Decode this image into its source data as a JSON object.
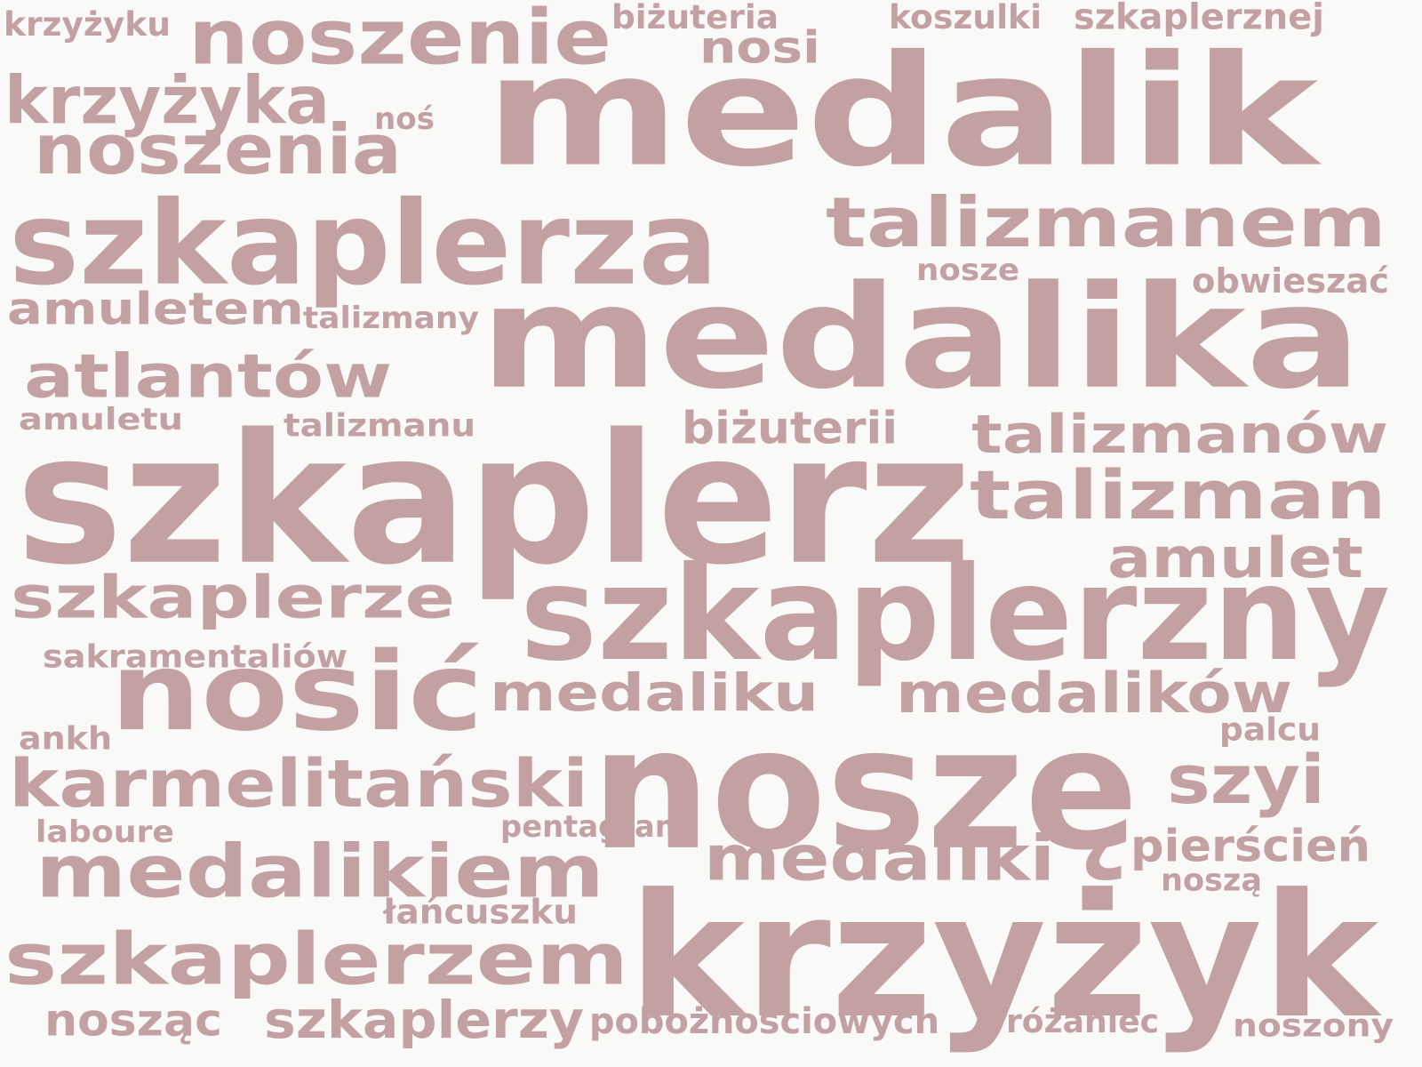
{
  "style": {
    "background": "#f9f9f7",
    "word_color": "#c3a0a1"
  },
  "words": [
    {
      "id": "medalik",
      "text": "medalik"
    },
    {
      "id": "medalika",
      "text": "medalika"
    },
    {
      "id": "szkaplerz",
      "text": "szkaplerz"
    },
    {
      "id": "krzyzyk",
      "text": "krzyżyk"
    },
    {
      "id": "nosze",
      "text": "noszę"
    },
    {
      "id": "szkaplerzny",
      "text": "szkaplerzny"
    },
    {
      "id": "nosic",
      "text": "nosić"
    },
    {
      "id": "szkaplerza",
      "text": "szkaplerza"
    },
    {
      "id": "noszenie",
      "text": "noszenie"
    },
    {
      "id": "talizmanem",
      "text": "talizmanem"
    },
    {
      "id": "talizman",
      "text": "talizman"
    },
    {
      "id": "szkaplerzem",
      "text": "szkaplerzem"
    },
    {
      "id": "medalikiem",
      "text": "medalikiem"
    },
    {
      "id": "karmelitanski",
      "text": "karmelitański"
    },
    {
      "id": "szkaplerze",
      "text": "szkaplerze"
    },
    {
      "id": "talizmanow",
      "text": "talizmanów"
    },
    {
      "id": "atlantow",
      "text": "atlantów"
    },
    {
      "id": "noszenia",
      "text": "noszenia"
    },
    {
      "id": "krzyzyka",
      "text": "krzyżyka"
    },
    {
      "id": "medaliki",
      "text": "medaliki"
    },
    {
      "id": "medalikow",
      "text": "medalików"
    },
    {
      "id": "medaliku",
      "text": "medaliku"
    },
    {
      "id": "szyi",
      "text": "szyi"
    },
    {
      "id": "amulet",
      "text": "amulet"
    },
    {
      "id": "amuletem",
      "text": "amuletem"
    },
    {
      "id": "szkaplerzy",
      "text": "szkaplerzy"
    },
    {
      "id": "nosi",
      "text": "nosi"
    },
    {
      "id": "nosząc",
      "text": "nosząc"
    },
    {
      "id": "bizuterii",
      "text": "biżuterii"
    },
    {
      "id": "pierscien",
      "text": "pierścień"
    },
    {
      "id": "poboznosciowych",
      "text": "pobożnościowych"
    },
    {
      "id": "rozaniec",
      "text": "różaniec"
    },
    {
      "id": "noszony",
      "text": "noszony"
    },
    {
      "id": "lancuszku",
      "text": "łańcuszku"
    },
    {
      "id": "sakramentaliow",
      "text": "sakramentaliów"
    },
    {
      "id": "szkaplerznej",
      "text": "szkaplerznej"
    },
    {
      "id": "koszulki",
      "text": "koszulki"
    },
    {
      "id": "bizuteria",
      "text": "biżuteria"
    },
    {
      "id": "krzyzyku",
      "text": "krzyżyku"
    },
    {
      "id": "talizmany",
      "text": "talizmany"
    },
    {
      "id": "talizmanu",
      "text": "talizmanu"
    },
    {
      "id": "amuletu",
      "text": "amuletu"
    },
    {
      "id": "obwieszac",
      "text": "obwieszać"
    },
    {
      "id": "nosze-ascii",
      "text": "nosze"
    },
    {
      "id": "pentagram",
      "text": "pentagram"
    },
    {
      "id": "labourne",
      "text": "laboure"
    },
    {
      "id": "ankh",
      "text": "ankh"
    },
    {
      "id": "palcu",
      "text": "palcu"
    },
    {
      "id": "noszą",
      "text": "noszą"
    },
    {
      "id": "nos",
      "text": "noś"
    }
  ]
}
